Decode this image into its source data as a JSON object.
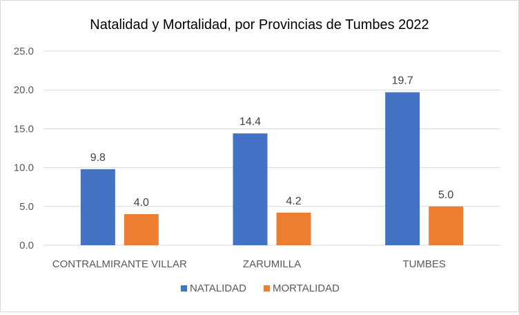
{
  "chart_data": {
    "type": "bar",
    "title": "Natalidad y Mortalidad, por Provincias de Tumbes 2022",
    "categories": [
      "CONTRALMIRANTE VILLAR",
      "ZARUMILLA",
      "TUMBES"
    ],
    "series": [
      {
        "name": "NATALIDAD",
        "values": [
          9.8,
          14.4,
          19.7
        ],
        "labels": [
          "9.8",
          "14.4",
          "19.7"
        ],
        "color": "#4472C4"
      },
      {
        "name": "MORTALIDAD",
        "values": [
          4.0,
          4.2,
          5.0
        ],
        "labels": [
          "4.0",
          "4.2",
          "5.0"
        ],
        "color": "#ED7D31"
      }
    ],
    "ylim": [
      0,
      25
    ],
    "yticks": [
      0,
      5,
      10,
      15,
      20,
      25
    ],
    "ytick_labels": [
      "0.0",
      "5.0",
      "10.0",
      "15.0",
      "20.0",
      "25.0"
    ],
    "xlabel": "",
    "ylabel": "",
    "grid": true,
    "legend_position": "bottom"
  }
}
